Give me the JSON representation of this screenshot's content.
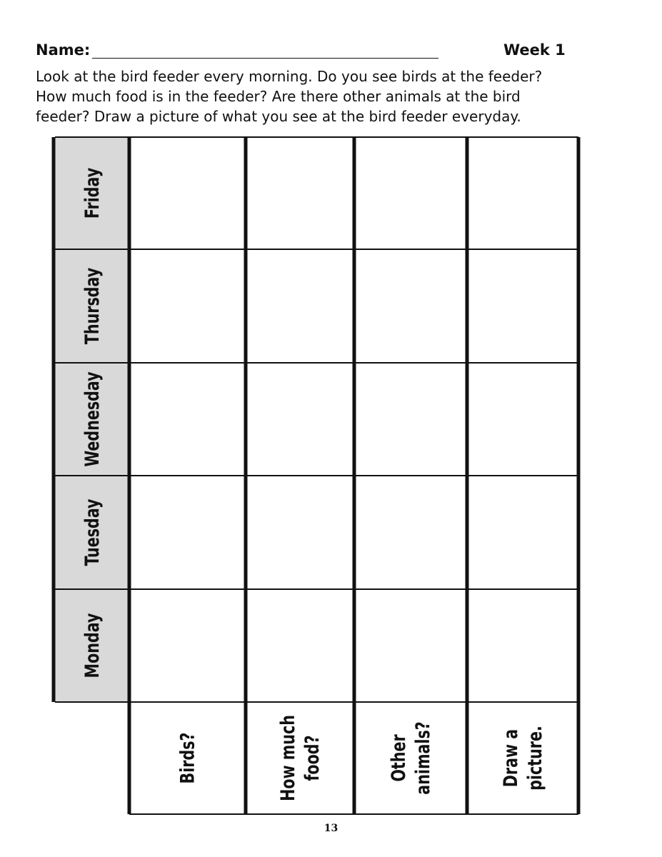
{
  "header": {
    "name_label": "Name:",
    "week_label": "Week 1"
  },
  "instructions": {
    "lines": [
      "Look at the bird feeder every morning. Do you see birds at the feeder?",
      "How much food is in the feeder? Are there other animals at the bird",
      "feeder? Draw a picture of what you see at the bird feeder everyday."
    ]
  },
  "table": {
    "days": [
      "Friday",
      "Thursday",
      "Wednesday",
      "Tuesday",
      "Monday"
    ],
    "questions": [
      [
        "Birds?"
      ],
      [
        "How much",
        "food?"
      ],
      [
        "Other",
        "animals?"
      ],
      [
        "Draw a",
        "picture."
      ]
    ],
    "day_cell_color": "#d9d9d9"
  },
  "footer": {
    "page_number": "13"
  }
}
